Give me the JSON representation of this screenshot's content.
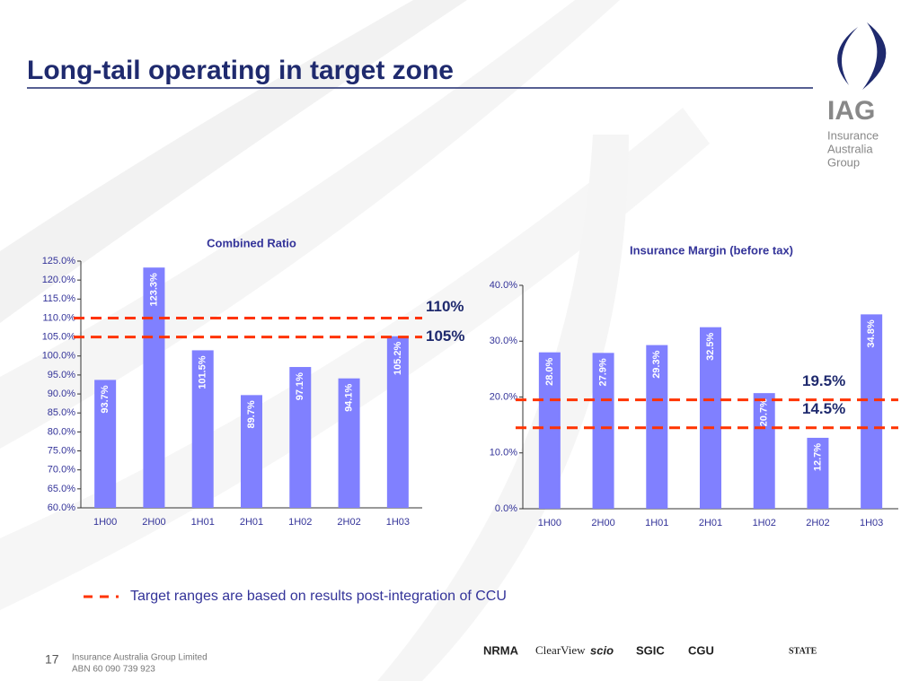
{
  "slide_title": "Long-tail operating in target zone",
  "logo": {
    "name": "IAG",
    "lines": [
      "Insurance",
      "Australia",
      "Group"
    ]
  },
  "chart_data": [
    {
      "type": "bar",
      "title": "Combined Ratio",
      "color": "#8080ff",
      "categories": [
        "1H00",
        "2H00",
        "1H01",
        "2H01",
        "1H02",
        "2H02",
        "1H03"
      ],
      "values": [
        93.7,
        123.3,
        101.5,
        89.7,
        97.1,
        94.1,
        105.2
      ],
      "value_labels": [
        "93.7%",
        "123.3%",
        "101.5%",
        "89.7%",
        "97.1%",
        "94.1%",
        "105.2%"
      ],
      "ylim": [
        60,
        125
      ],
      "yticks": [
        {
          "value": 60,
          "label": "60.0%"
        },
        {
          "value": 65,
          "label": "65.0%"
        },
        {
          "value": 70,
          "label": "70.0%"
        },
        {
          "value": 75,
          "label": "75.0%"
        },
        {
          "value": 80,
          "label": "80.0%"
        },
        {
          "value": 85,
          "label": "85.0%"
        },
        {
          "value": 90,
          "label": "90.0%"
        },
        {
          "value": 95,
          "label": "95.0%"
        },
        {
          "value": 100,
          "label": "100.0%"
        },
        {
          "value": 105,
          "label": "105.0%"
        },
        {
          "value": 110,
          "label": "110.0%"
        },
        {
          "value": 115,
          "label": "115.0%"
        },
        {
          "value": 120,
          "label": "120.0%"
        },
        {
          "value": 125,
          "label": "125.0%"
        }
      ],
      "target_lines": [
        {
          "value": 110,
          "label": "110%"
        },
        {
          "value": 105,
          "label": "105%"
        }
      ],
      "target_color": "#ff3300"
    },
    {
      "type": "bar",
      "title": "Insurance Margin (before tax)",
      "color": "#8080ff",
      "categories": [
        "1H00",
        "2H00",
        "1H01",
        "2H01",
        "1H02",
        "2H02",
        "1H03"
      ],
      "values": [
        28.0,
        27.9,
        29.3,
        32.5,
        20.7,
        12.7,
        34.8
      ],
      "value_labels": [
        "28.0%",
        "27.9%",
        "29.3%",
        "32.5%",
        "20.7%",
        "12.7%",
        "34.8%"
      ],
      "ylim": [
        0,
        40
      ],
      "yticks": [
        {
          "value": 0,
          "label": "0.0%"
        },
        {
          "value": 10,
          "label": "10.0%"
        },
        {
          "value": 20,
          "label": "20.0%"
        },
        {
          "value": 30,
          "label": "30.0%"
        },
        {
          "value": 40,
          "label": "40.0%"
        }
      ],
      "target_lines": [
        {
          "value": 19.5,
          "label": "19.5%"
        },
        {
          "value": 14.5,
          "label": "14.5%"
        }
      ],
      "target_color": "#ff3300"
    }
  ],
  "note": "Target ranges are based on results post-integration of CCU",
  "footer": {
    "page": "17",
    "company": "Insurance Australia Group Limited",
    "abn": "ABN 60 090 739 923"
  },
  "brands": [
    "NRMA",
    "ClearView",
    "scio",
    "SGIC",
    "CGU",
    "STATE"
  ]
}
